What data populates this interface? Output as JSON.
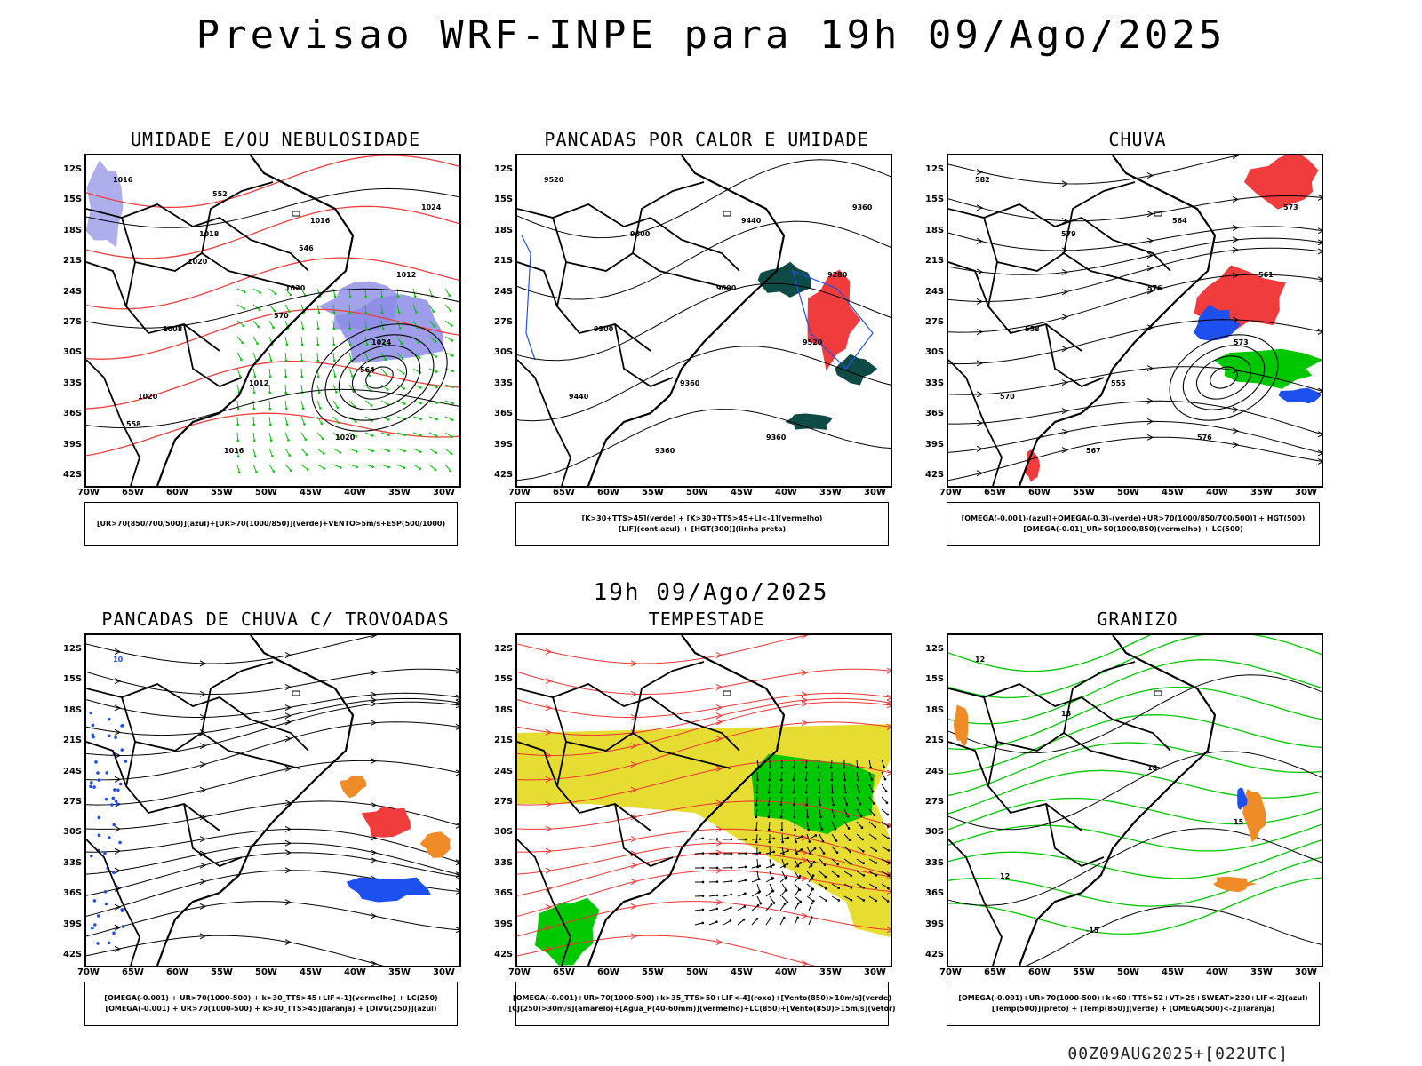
{
  "title": "Previsao WRF-INPE  para 19h 09/Ago/2025",
  "mid_title": "19h 09/Ago/2025",
  "footer": "00Z09AUG2025+[022UTC]",
  "axes": {
    "lat_ticks": [
      "12S",
      "15S",
      "18S",
      "21S",
      "24S",
      "27S",
      "30S",
      "33S",
      "36S",
      "39S",
      "42S"
    ],
    "lon_ticks": [
      "70W",
      "65W",
      "60W",
      "55W",
      "50W",
      "45W",
      "40W",
      "35W",
      "30W"
    ]
  },
  "panels": [
    {
      "id": "umidade",
      "title": "UMIDADE E/OU NEBULOSIDADE",
      "legend": [
        "[UR>70(850/700/500)](azul)+[UR>70(1000/850)](verde)+VENTO>5m/s+ESP(500/1000)"
      ],
      "contour_labels": [
        "1016",
        "1018",
        "1020",
        "1024",
        "1020",
        "1016",
        "1016",
        "1012",
        "1008",
        "1012",
        "1020",
        "1024",
        "1020",
        "570",
        "564",
        "558",
        "552",
        "546"
      ]
    },
    {
      "id": "pancadas-calor",
      "title": "PANCADAS POR CALOR E UMIDADE",
      "legend": [
        "[K>30+TTS>45](verde) + [K>30+TTS>45+LI<-1](vermelho)",
        "[LIF](cont.azul) + [HGT(300)](linha preta)"
      ],
      "contour_labels": [
        "9520",
        "9600",
        "9600",
        "9520",
        "9440",
        "9360",
        "9440",
        "9280",
        "9200",
        "9360",
        "9360",
        "9360"
      ]
    },
    {
      "id": "chuva",
      "title": "CHUVA",
      "legend": [
        "[OMEGA(-0.001)-(azul)+OMEGA(-0.3)-(verde)+UR>70(1000/850/700/500)] + HGT(500)",
        "[OMEGA(-0.01)_UR>50(1000/850)(vermelho) + LC(500)"
      ],
      "contour_labels": [
        "582",
        "579",
        "576",
        "573",
        "570",
        "567",
        "564",
        "561",
        "558",
        "555",
        "576",
        "573"
      ]
    },
    {
      "id": "pancadas-trovoadas",
      "title": "PANCADAS DE CHUVA C/ TROVOADAS",
      "legend": [
        "[OMEGA(-0.001) + UR>70(1000-500) + k>30_TTS>45+LIF<-1](vermelho) + LC(250)",
        "[OMEGA(-0.001) + UR>70(1000-500) + k>30_TTS>45](laranja) + [DIVG(250)](azul)"
      ],
      "contour_labels": [
        "10"
      ]
    },
    {
      "id": "tempestade",
      "title": "TEMPESTADE",
      "legend": [
        "[OMEGA(-0.001)+UR>70(1000-500)+k>35_TTS>50+LIF<-4](roxo)+[Vento(850)>10m/s](verde)",
        "[CJ(250)>30m/s](amarelo)+[Agua_P(40-60mm)](vermelho)+LC(850)+[Vento(850)>15m/s](vetor)"
      ],
      "contour_labels": []
    },
    {
      "id": "granizo",
      "title": "GRANIZO",
      "legend": [
        "[OMEGA(-0.001)+UR>70(1000-500)+k<60+TTS>52+VT>25+SWEAT>220+LIF<-2](azul)",
        "[Temp(500)](preto) + [Temp(850)](verde) + [OMEGA(500)<-2](laranja)"
      ],
      "contour_labels": [
        "12",
        "15",
        "18",
        "15",
        "12",
        "-15"
      ]
    }
  ],
  "colors": {
    "blue_humidity": "#8c8ce6",
    "green": "#00c800",
    "red": "#f03c3c",
    "dark_teal": "#0f4b46",
    "yellow": "#e6dc32",
    "orange": "#f08c28",
    "blue": "#1e50f0"
  }
}
